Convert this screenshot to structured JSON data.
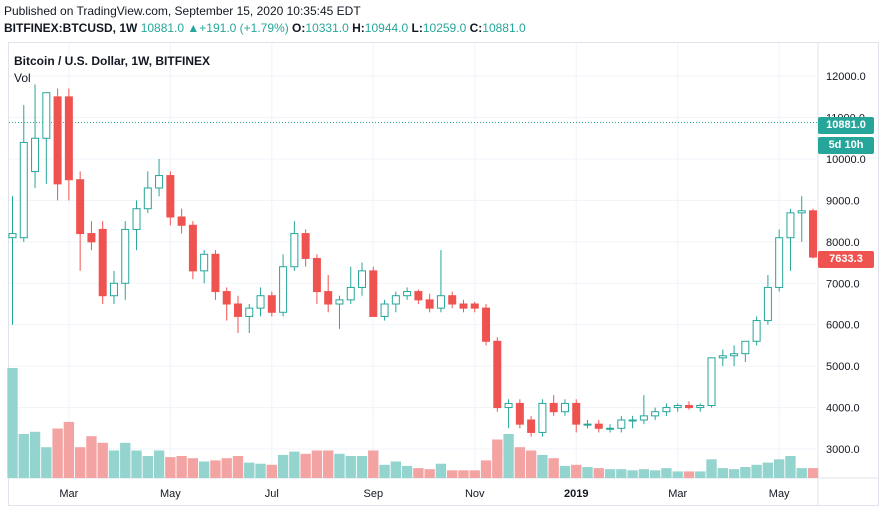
{
  "header": {
    "published": "Published on TradingView.com, September 15, 2020 10:35:45 EDT",
    "symbol": "BITFINEX:BTCUSD, 1W",
    "last": "10881.0",
    "change": "▲+191.0 (+1.79%)",
    "o_label": "O:",
    "o_value": "10331.0",
    "h_label": "H:",
    "h_value": "10944.0",
    "l_label": "L:",
    "l_value": "10259.0",
    "c_label": "C:",
    "c_value": "10881.0"
  },
  "pane": {
    "title": "Bitcoin / U.S. Dollar, 1W, BITFINEX",
    "volume_label": "Vol"
  },
  "price_labels": {
    "last": "10881.0",
    "countdown": "5d 10h",
    "close": "7633.3"
  },
  "colors": {
    "up": "#26a69a",
    "down": "#ef5350",
    "vol_up": "#94d4cf",
    "vol_down": "#f4a3a3",
    "last_line": "#26a69a"
  },
  "chart_data": {
    "type": "candlestick",
    "title": "Bitcoin / U.S. Dollar, 1W, BITFINEX",
    "y_ticks": [
      3000,
      4000,
      5000,
      6000,
      7000,
      8000,
      9000,
      10000,
      11000,
      12000
    ],
    "y_tick_labels": [
      "3000.0",
      "4000.0",
      "5000.0",
      "6000.0",
      "7000.0",
      "8000.0",
      "9000.0",
      "10000.0",
      "11000.0",
      "12000.0"
    ],
    "ylim": [
      2300,
      12800
    ],
    "last_price": 10881.0,
    "x_labels": [
      {
        "label": "Mar",
        "bar": 5,
        "year": false
      },
      {
        "label": "May",
        "bar": 14,
        "year": false
      },
      {
        "label": "Jul",
        "bar": 23,
        "year": false
      },
      {
        "label": "Sep",
        "bar": 32,
        "year": false
      },
      {
        "label": "Nov",
        "bar": 41,
        "year": false
      },
      {
        "label": "2019",
        "bar": 50,
        "year": true
      },
      {
        "label": "Mar",
        "bar": 59,
        "year": false
      },
      {
        "label": "May",
        "bar": 68,
        "year": false
      }
    ],
    "candles": [
      {
        "o": 8100,
        "h": 9100,
        "l": 6000,
        "c": 8200,
        "v": 100
      },
      {
        "o": 8100,
        "h": 11300,
        "l": 8000,
        "c": 10400,
        "v": 40
      },
      {
        "o": 9700,
        "h": 11800,
        "l": 9300,
        "c": 10500,
        "v": 42
      },
      {
        "o": 10500,
        "h": 11600,
        "l": 9400,
        "c": 11600,
        "v": 28
      },
      {
        "o": 11500,
        "h": 11700,
        "l": 9000,
        "c": 9400,
        "v": 45
      },
      {
        "o": 11500,
        "h": 11700,
        "l": 9000,
        "c": 9500,
        "v": 51
      },
      {
        "o": 9500,
        "h": 9700,
        "l": 7300,
        "c": 8200,
        "v": 28
      },
      {
        "o": 8200,
        "h": 8500,
        "l": 7800,
        "c": 8000,
        "v": 38
      },
      {
        "o": 8300,
        "h": 8500,
        "l": 6500,
        "c": 6700,
        "v": 32
      },
      {
        "o": 6700,
        "h": 7300,
        "l": 6500,
        "c": 7000,
        "v": 25
      },
      {
        "o": 7000,
        "h": 8500,
        "l": 6600,
        "c": 8300,
        "v": 32
      },
      {
        "o": 8300,
        "h": 9000,
        "l": 7800,
        "c": 8800,
        "v": 25
      },
      {
        "o": 8800,
        "h": 9700,
        "l": 8700,
        "c": 9300,
        "v": 20
      },
      {
        "o": 9300,
        "h": 10000,
        "l": 9100,
        "c": 9600,
        "v": 25
      },
      {
        "o": 9600,
        "h": 9700,
        "l": 8400,
        "c": 8600,
        "v": 19
      },
      {
        "o": 8600,
        "h": 8800,
        "l": 8200,
        "c": 8400,
        "v": 20
      },
      {
        "o": 8400,
        "h": 8500,
        "l": 7100,
        "c": 7300,
        "v": 18
      },
      {
        "o": 7300,
        "h": 7800,
        "l": 7000,
        "c": 7700,
        "v": 15
      },
      {
        "o": 7700,
        "h": 7800,
        "l": 6600,
        "c": 6800,
        "v": 16
      },
      {
        "o": 6800,
        "h": 6900,
        "l": 6100,
        "c": 6500,
        "v": 18
      },
      {
        "o": 6500,
        "h": 6700,
        "l": 5800,
        "c": 6200,
        "v": 20
      },
      {
        "o": 6200,
        "h": 6500,
        "l": 5800,
        "c": 6400,
        "v": 14
      },
      {
        "o": 6400,
        "h": 6900,
        "l": 6200,
        "c": 6700,
        "v": 13
      },
      {
        "o": 6700,
        "h": 6800,
        "l": 6200,
        "c": 6300,
        "v": 12
      },
      {
        "o": 6300,
        "h": 7700,
        "l": 6200,
        "c": 7400,
        "v": 21
      },
      {
        "o": 7400,
        "h": 8500,
        "l": 7300,
        "c": 8200,
        "v": 24
      },
      {
        "o": 8200,
        "h": 8300,
        "l": 7400,
        "c": 7600,
        "v": 22
      },
      {
        "o": 7600,
        "h": 7700,
        "l": 6500,
        "c": 6800,
        "v": 25
      },
      {
        "o": 6800,
        "h": 7200,
        "l": 6300,
        "c": 6500,
        "v": 25
      },
      {
        "o": 6500,
        "h": 6700,
        "l": 5900,
        "c": 6600,
        "v": 22
      },
      {
        "o": 6600,
        "h": 7400,
        "l": 6500,
        "c": 6900,
        "v": 20
      },
      {
        "o": 6900,
        "h": 7500,
        "l": 6700,
        "c": 7300,
        "v": 20
      },
      {
        "o": 7300,
        "h": 7400,
        "l": 6200,
        "c": 6200,
        "v": 25
      },
      {
        "o": 6200,
        "h": 6600,
        "l": 6100,
        "c": 6500,
        "v": 12
      },
      {
        "o": 6500,
        "h": 6800,
        "l": 6300,
        "c": 6700,
        "v": 15
      },
      {
        "o": 6700,
        "h": 6900,
        "l": 6600,
        "c": 6800,
        "v": 11
      },
      {
        "o": 6800,
        "h": 6850,
        "l": 6500,
        "c": 6600,
        "v": 9
      },
      {
        "o": 6600,
        "h": 6750,
        "l": 6300,
        "c": 6400,
        "v": 8
      },
      {
        "o": 6400,
        "h": 7800,
        "l": 6300,
        "c": 6700,
        "v": 13
      },
      {
        "o": 6700,
        "h": 6800,
        "l": 6400,
        "c": 6500,
        "v": 7
      },
      {
        "o": 6500,
        "h": 6600,
        "l": 6300,
        "c": 6400,
        "v": 7
      },
      {
        "o": 6500,
        "h": 6550,
        "l": 6300,
        "c": 6400,
        "v": 7
      },
      {
        "o": 6400,
        "h": 6500,
        "l": 5500,
        "c": 5600,
        "v": 16
      },
      {
        "o": 5600,
        "h": 5700,
        "l": 3900,
        "c": 4000,
        "v": 35
      },
      {
        "o": 4000,
        "h": 4200,
        "l": 3500,
        "c": 4100,
        "v": 40
      },
      {
        "o": 4100,
        "h": 4200,
        "l": 3500,
        "c": 3600,
        "v": 28
      },
      {
        "o": 3700,
        "h": 3800,
        "l": 3300,
        "c": 3400,
        "v": 25
      },
      {
        "o": 3400,
        "h": 4200,
        "l": 3300,
        "c": 4100,
        "v": 21
      },
      {
        "o": 4100,
        "h": 4300,
        "l": 3800,
        "c": 3900,
        "v": 18
      },
      {
        "o": 3900,
        "h": 4200,
        "l": 3800,
        "c": 4100,
        "v": 11
      },
      {
        "o": 4100,
        "h": 4200,
        "l": 3400,
        "c": 3600,
        "v": 12
      },
      {
        "o": 3600,
        "h": 3700,
        "l": 3500,
        "c": 3600,
        "v": 10
      },
      {
        "o": 3600,
        "h": 3700,
        "l": 3400,
        "c": 3500,
        "v": 9
      },
      {
        "o": 3500,
        "h": 3600,
        "l": 3400,
        "c": 3500,
        "v": 8
      },
      {
        "o": 3500,
        "h": 3800,
        "l": 3400,
        "c": 3700,
        "v": 8
      },
      {
        "o": 3700,
        "h": 3800,
        "l": 3500,
        "c": 3700,
        "v": 7
      },
      {
        "o": 3700,
        "h": 4300,
        "l": 3600,
        "c": 3800,
        "v": 8
      },
      {
        "o": 3800,
        "h": 4000,
        "l": 3700,
        "c": 3900,
        "v": 7
      },
      {
        "o": 3900,
        "h": 4100,
        "l": 3800,
        "c": 4000,
        "v": 9
      },
      {
        "o": 4000,
        "h": 4100,
        "l": 3900,
        "c": 4050,
        "v": 6
      },
      {
        "o": 4050,
        "h": 4150,
        "l": 3950,
        "c": 4000,
        "v": 6
      },
      {
        "o": 4000,
        "h": 4100,
        "l": 3900,
        "c": 4050,
        "v": 6
      },
      {
        "o": 4050,
        "h": 5200,
        "l": 4000,
        "c": 5200,
        "v": 17
      },
      {
        "o": 5200,
        "h": 5400,
        "l": 5000,
        "c": 5250,
        "v": 9
      },
      {
        "o": 5250,
        "h": 5500,
        "l": 5000,
        "c": 5300,
        "v": 8
      },
      {
        "o": 5300,
        "h": 5600,
        "l": 5100,
        "c": 5600,
        "v": 10
      },
      {
        "o": 5600,
        "h": 6200,
        "l": 5500,
        "c": 6100,
        "v": 12
      },
      {
        "o": 6100,
        "h": 7200,
        "l": 6000,
        "c": 6900,
        "v": 14
      },
      {
        "o": 6900,
        "h": 8300,
        "l": 6800,
        "c": 8100,
        "v": 17
      },
      {
        "o": 8100,
        "h": 8800,
        "l": 7300,
        "c": 8700,
        "v": 20
      },
      {
        "o": 8700,
        "h": 9100,
        "l": 8000,
        "c": 8750,
        "v": 9
      },
      {
        "o": 8750,
        "h": 8800,
        "l": 7600,
        "c": 7633,
        "v": 9
      }
    ]
  }
}
